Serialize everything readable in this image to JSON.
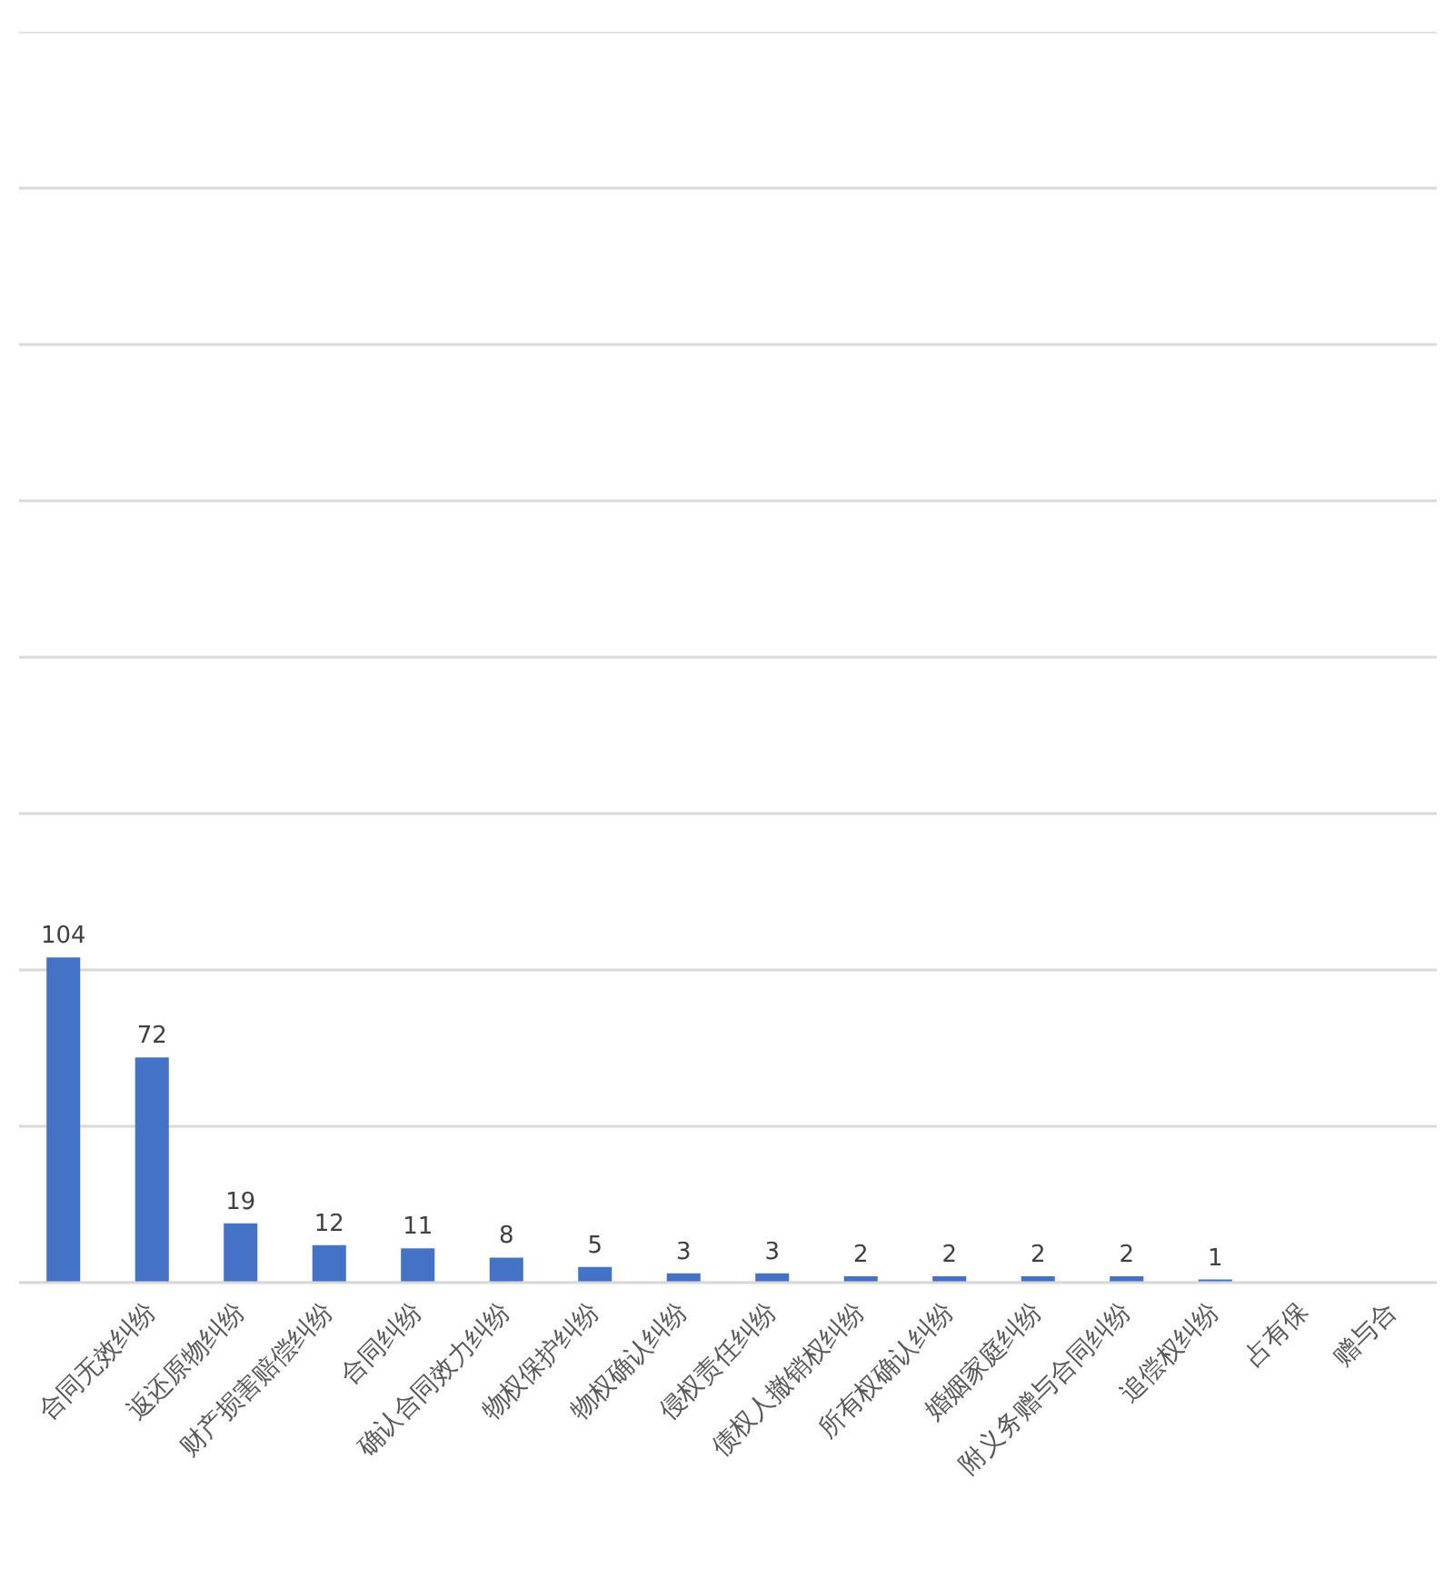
{
  "chart_data": {
    "type": "bar",
    "categories": [
      null,
      "合同无效纠纷",
      "返还原物纠纷",
      "财产损害赔偿纠纷",
      "合同纠纷",
      "确认合同效力纠纷",
      "物权保护纠纷",
      "物权确认纠纷",
      "侵权责任纠纷",
      "债权人撤销权纠纷",
      "所有权确认纠纷",
      "婚姻家庭纠纷",
      "附义务赠与合同纠纷",
      "追偿权纠纷",
      "占有保",
      "赠与合"
    ],
    "values": [
      104,
      72,
      19,
      12,
      11,
      8,
      5,
      3,
      3,
      2,
      2,
      2,
      2,
      1,
      null,
      null
    ],
    "color": "#4472c4",
    "ylim": [
      0,
      400
    ],
    "yticks": [
      {
        "value": 0,
        "label": null
      },
      {
        "value": 50,
        "label": null
      },
      {
        "value": 100,
        "label": null
      },
      {
        "value": 150,
        "label": null
      },
      {
        "value": 200,
        "label": null
      },
      {
        "value": 250,
        "label": null
      },
      {
        "value": 300,
        "label": null
      },
      {
        "value": 350,
        "label": null
      },
      {
        "value": 400,
        "label": null
      }
    ],
    "grid": "y",
    "tick_labels": "x",
    "data_labels": true
  }
}
